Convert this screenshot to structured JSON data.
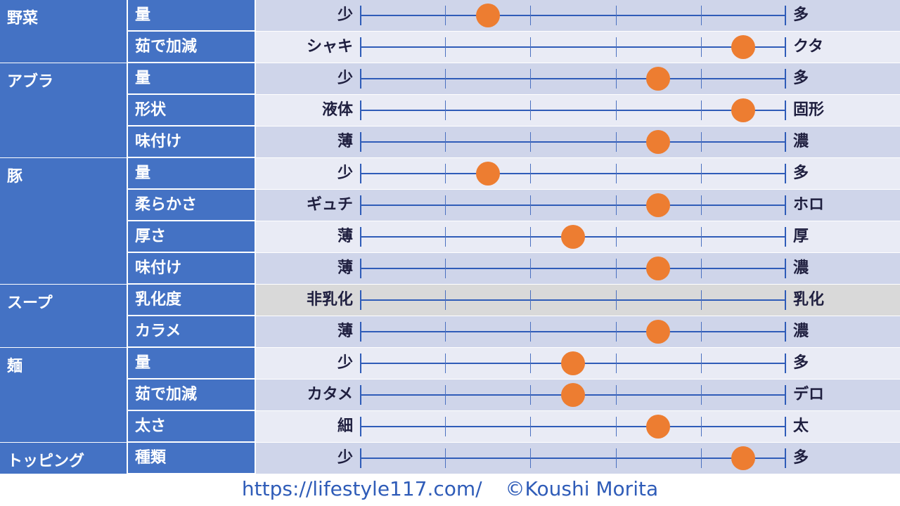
{
  "scale_steps": 5,
  "colors": {
    "category_bg": "#4472c4",
    "row_dark": "#cfd5ea",
    "row_light": "#e9ebf5",
    "row_gray": "#d9d9d9",
    "axis": "#2f5cb8",
    "dot": "#ed7d31"
  },
  "categories": [
    {
      "name": "野菜",
      "rows": [
        {
          "param": "量",
          "left": "少",
          "right": "多",
          "value": 1.5
        },
        {
          "param": "茹で加減",
          "left": "シャキ",
          "right": "クタ",
          "value": 4.5
        }
      ]
    },
    {
      "name": "アブラ",
      "rows": [
        {
          "param": "量",
          "left": "少",
          "right": "多",
          "value": 3.5
        },
        {
          "param": "形状",
          "left": "液体",
          "right": "固形",
          "value": 4.5
        },
        {
          "param": "味付け",
          "left": "薄",
          "right": "濃",
          "value": 3.5
        }
      ]
    },
    {
      "name": "豚",
      "rows": [
        {
          "param": "量",
          "left": "少",
          "right": "多",
          "value": 1.5
        },
        {
          "param": "柔らかさ",
          "left": "ギュチ",
          "right": "ホロ",
          "value": 3.5
        },
        {
          "param": "厚さ",
          "left": "薄",
          "right": "厚",
          "value": 2.5
        },
        {
          "param": "味付け",
          "left": "薄",
          "right": "濃",
          "value": 3.5
        }
      ]
    },
    {
      "name": "スープ",
      "rows": [
        {
          "param": "乳化度",
          "left": "非乳化",
          "right": "乳化",
          "value": null,
          "disabled": true
        },
        {
          "param": "カラメ",
          "left": "薄",
          "right": "濃",
          "value": 3.5
        }
      ]
    },
    {
      "name": "麺",
      "rows": [
        {
          "param": "量",
          "left": "少",
          "right": "多",
          "value": 2.5
        },
        {
          "param": "茹で加減",
          "left": "カタメ",
          "right": "デロ",
          "value": 2.5
        },
        {
          "param": "太さ",
          "left": "細",
          "right": "太",
          "value": 3.5
        }
      ]
    },
    {
      "name": "トッピング",
      "rows": [
        {
          "param": "種類",
          "left": "少",
          "right": "多",
          "value": 4.5
        }
      ]
    }
  ],
  "footer": {
    "url": "https://lifestyle117.com/",
    "copyright": "©Koushi Morita"
  }
}
